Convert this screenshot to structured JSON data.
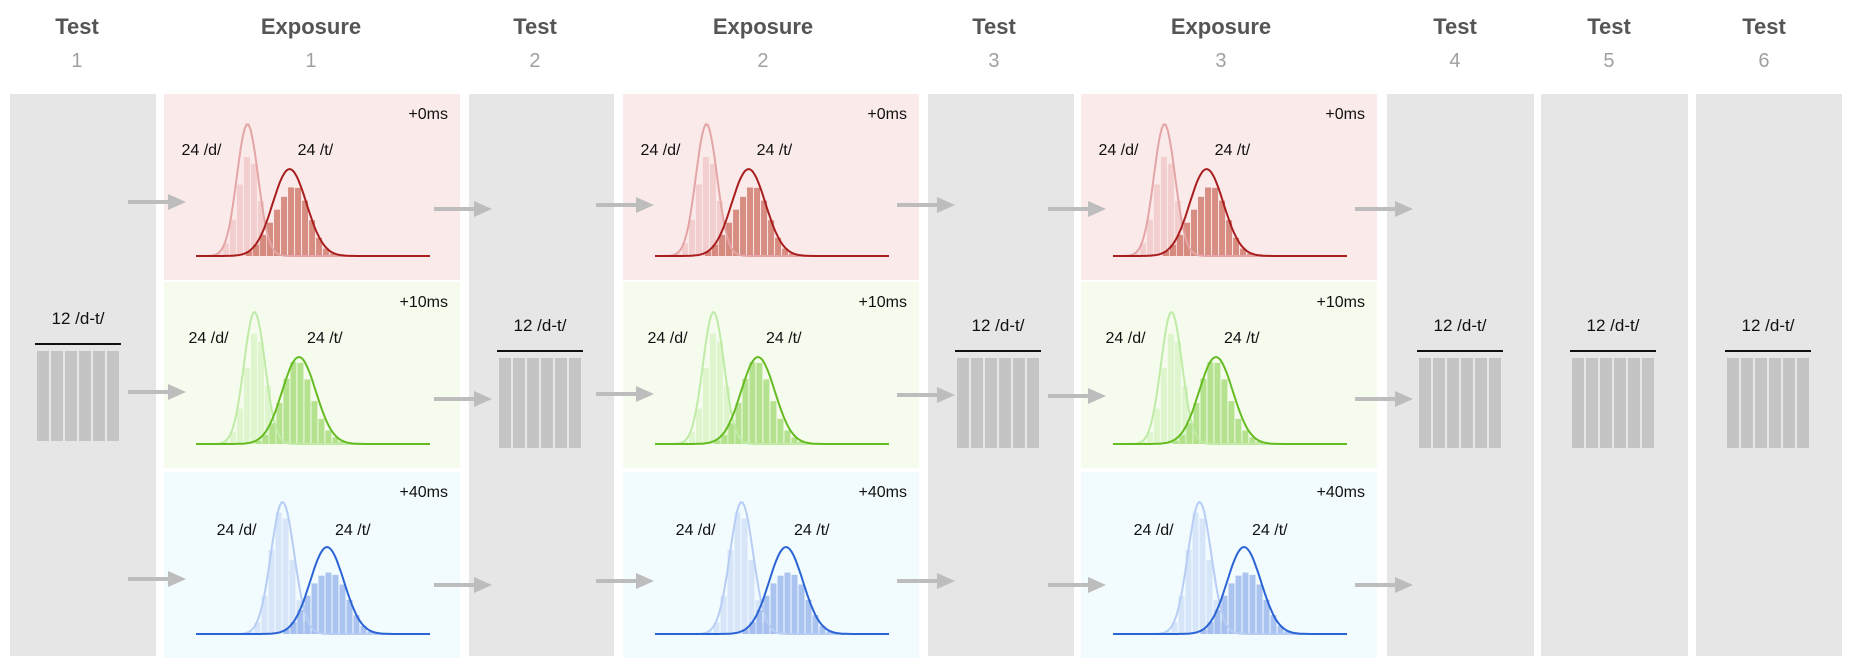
{
  "headers": [
    {
      "title": "Test",
      "number": "1"
    },
    {
      "title": "Exposure",
      "number": "1"
    },
    {
      "title": "Test",
      "number": "2"
    },
    {
      "title": "Exposure",
      "number": "2"
    },
    {
      "title": "Test",
      "number": "3"
    },
    {
      "title": "Exposure",
      "number": "3"
    },
    {
      "title": "Test",
      "number": "4"
    },
    {
      "title": "Test",
      "number": "5"
    },
    {
      "title": "Test",
      "number": "6"
    }
  ],
  "test_block_label": "12 /d-t/",
  "test_block_bar_count": 6,
  "conditions": [
    {
      "offset": "+0ms",
      "d_label": "24 /d/",
      "t_label": "24 /t/",
      "fill": "#fbeaea",
      "d_color": "#e3a5a5",
      "t_color": "#a81e1e",
      "d_bar": "#f1c9c9",
      "t_bar": "#d07c6e"
    },
    {
      "offset": "+10ms",
      "d_label": "24 /d/",
      "t_label": "24 /t/",
      "fill": "#f5fcee",
      "d_color": "#bfeba7",
      "t_color": "#66bb22",
      "d_bar": "#d9f3c7",
      "t_bar": "#a9dd7e"
    },
    {
      "offset": "+40ms",
      "d_label": "24 /d/",
      "t_label": "24 /t/",
      "fill": "#f2fbfe",
      "d_color": "#b7cdf3",
      "t_color": "#2b64d4",
      "d_bar": "#d2e1f8",
      "t_bar": "#9db8ec"
    }
  ],
  "colors": {
    "test_column": "#e6e6e6",
    "arrow": "#bdbdbd",
    "header": "#555555",
    "header_number": "#a0a0a0"
  }
}
